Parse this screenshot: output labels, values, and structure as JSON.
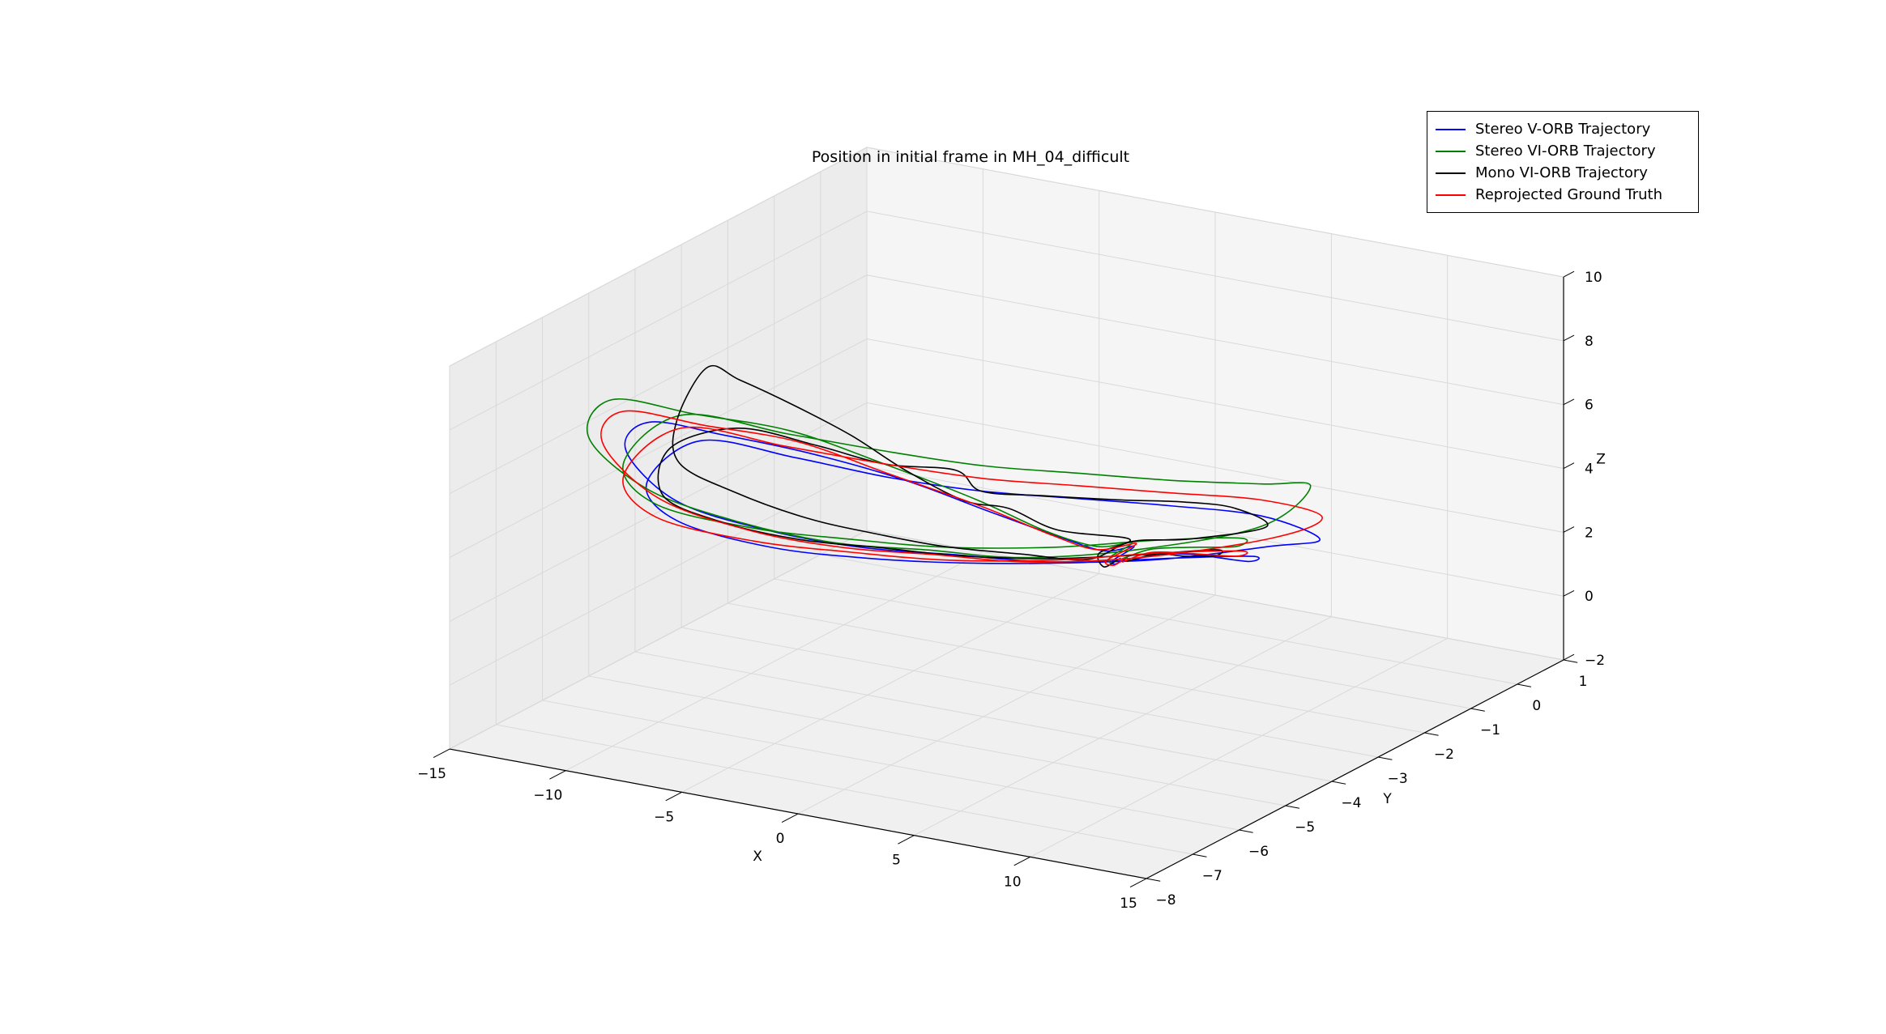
{
  "chart_data": {
    "type": "line",
    "plot_type": "3d-trajectory",
    "title": "Position in initial frame in MH_04_difficult",
    "xlabel": "X",
    "ylabel": "Y",
    "zlabel": "Z",
    "xlim": [
      -15,
      15
    ],
    "ylim": [
      -8,
      1
    ],
    "zlim": [
      -2,
      10
    ],
    "xticks": [
      -15,
      -10,
      -5,
      0,
      5,
      10,
      15
    ],
    "yticks": [
      1,
      0,
      -1,
      -2,
      -3,
      -4,
      -5,
      -6,
      -7,
      -8
    ],
    "zticks": [
      -2,
      0,
      2,
      4,
      6,
      8,
      10
    ],
    "view": {
      "elev": 30,
      "azim": -60
    },
    "grid": true,
    "legend_position": "upper right",
    "colors": {
      "pane_floor": "#f0f0f0",
      "pane_left": "#ececec",
      "pane_right": "#f5f5f5",
      "grid": "#d9d9d9",
      "pane_edge": "#cccccc",
      "spine": "#000000"
    },
    "series": [
      {
        "name": "Stereo V-ORB Trajectory",
        "color": "#0000ff",
        "points": [
          [
            -1,
            -0.4,
            0.1
          ],
          [
            -0.7,
            -0.8,
            0.25
          ],
          [
            -1.2,
            -0.6,
            0.15
          ],
          [
            -0.9,
            -0.3,
            0.4
          ],
          [
            -1,
            -0.9,
            0.7
          ],
          [
            -2.2,
            -1.3,
            1.3
          ],
          [
            -4.2,
            -1.8,
            2.2
          ],
          [
            -7,
            -2.2,
            3.1
          ],
          [
            -9.8,
            -2.8,
            4
          ],
          [
            -11.8,
            -3.7,
            5
          ],
          [
            -13,
            -4.7,
            6
          ],
          [
            -12.8,
            -5.3,
            5.6
          ],
          [
            -10.8,
            -5.2,
            4.2
          ],
          [
            -7.8,
            -4.7,
            3.3
          ],
          [
            -4.8,
            -4.2,
            2.8
          ],
          [
            -1.8,
            -3.7,
            2.6
          ],
          [
            1.2,
            -3.2,
            2.4
          ],
          [
            4.2,
            -2.3,
            2.2
          ],
          [
            6.3,
            -1,
            1.9
          ],
          [
            6.9,
            -0.2,
            1.6
          ],
          [
            5.2,
            -0.6,
            2.4
          ],
          [
            2.2,
            -1.1,
            2.7
          ],
          [
            -0.8,
            -1.6,
            2.9
          ],
          [
            -3.8,
            -2.1,
            3.1
          ],
          [
            -6.8,
            -2.6,
            3.5
          ],
          [
            -9.3,
            -3.4,
            4.4
          ],
          [
            -11.6,
            -4.3,
            5.3
          ],
          [
            -12.1,
            -5.2,
            4.6
          ],
          [
            -10.2,
            -5.5,
            3.9
          ],
          [
            -7.2,
            -5,
            3.1
          ],
          [
            -4.2,
            -4.4,
            2.7
          ],
          [
            -1.2,
            -3.8,
            2.5
          ],
          [
            1.8,
            -3,
            2.3
          ],
          [
            4.3,
            -2.1,
            2.1
          ],
          [
            5.8,
            -1.1,
            1.6
          ],
          [
            4.8,
            -0.7,
            1
          ],
          [
            2.2,
            -0.5,
            0.7
          ],
          [
            0.2,
            -0.3,
            0.3
          ],
          [
            -0.7,
            -0.5,
            0.12
          ]
        ]
      },
      {
        "name": "Stereo VI-ORB Trajectory",
        "color": "#008000",
        "points": [
          [
            -1.1,
            -0.5,
            0.15
          ],
          [
            -0.7,
            -0.9,
            0.35
          ],
          [
            -1.3,
            -0.6,
            0.25
          ],
          [
            -0.9,
            -0.35,
            0.55
          ],
          [
            -1.1,
            -1,
            0.9
          ],
          [
            -2.1,
            -1.6,
            1.7
          ],
          [
            -4.1,
            -2.1,
            2.8
          ],
          [
            -7.1,
            -2.6,
            3.9
          ],
          [
            -10.1,
            -3.1,
            4.9
          ],
          [
            -12.2,
            -4.1,
            5.9
          ],
          [
            -13.8,
            -5.1,
            6.9
          ],
          [
            -13.4,
            -5.8,
            6.3
          ],
          [
            -11.2,
            -5.6,
            4.8
          ],
          [
            -8.2,
            -5.1,
            3.8
          ],
          [
            -5.2,
            -4.6,
            3.2
          ],
          [
            -2.2,
            -4.1,
            3
          ],
          [
            0.9,
            -3.6,
            2.8
          ],
          [
            3.9,
            -2.6,
            2.7
          ],
          [
            6.2,
            -1.1,
            2.6
          ],
          [
            5.9,
            0.1,
            2.9
          ],
          [
            4.8,
            -0.4,
            3.2
          ],
          [
            1.9,
            -0.9,
            3.3
          ],
          [
            -1.1,
            -1.4,
            3.5
          ],
          [
            -4.1,
            -1.9,
            3.7
          ],
          [
            -7.1,
            -2.4,
            4.1
          ],
          [
            -9.6,
            -3.4,
            5.1
          ],
          [
            -12.2,
            -4.4,
            6.1
          ],
          [
            -12.7,
            -5.4,
            5.3
          ],
          [
            -10.7,
            -5.7,
            4.5
          ],
          [
            -7.7,
            -5.1,
            3.7
          ],
          [
            -4.7,
            -4.5,
            3.3
          ],
          [
            -1.7,
            -3.9,
            3
          ],
          [
            1.3,
            -3.1,
            2.8
          ],
          [
            3.8,
            -2.1,
            2.6
          ],
          [
            5.3,
            -1.1,
            2.1
          ],
          [
            4.3,
            -0.7,
            1.4
          ],
          [
            1.9,
            -0.5,
            0.9
          ],
          [
            -0.1,
            -0.35,
            0.45
          ],
          [
            -0.9,
            -0.55,
            0.2
          ]
        ]
      },
      {
        "name": "Mono VI-ORB Trajectory",
        "color": "#000000",
        "points": [
          [
            -1.2,
            -0.5,
            0.1
          ],
          [
            -0.8,
            -1,
            0.3
          ],
          [
            -1.4,
            -0.8,
            0.5
          ],
          [
            -0.9,
            -0.4,
            0.7
          ],
          [
            -2,
            -1.4,
            1.6
          ],
          [
            -3.5,
            -1.7,
            2.3
          ],
          [
            -4.2,
            -2.3,
            2.9
          ],
          [
            -6.5,
            -2.4,
            3.6
          ],
          [
            -8.5,
            -2.6,
            4.6
          ],
          [
            -10.5,
            -2.8,
            5.4
          ],
          [
            -12.5,
            -3,
            6.1
          ],
          [
            -13.5,
            -3.2,
            6.5
          ],
          [
            -12.8,
            -4.2,
            5.7
          ],
          [
            -11.5,
            -4.8,
            5
          ],
          [
            -9.5,
            -4.6,
            4.2
          ],
          [
            -7,
            -4.3,
            3.5
          ],
          [
            -4.5,
            -4,
            3.1
          ],
          [
            -2,
            -3.8,
            2.9
          ],
          [
            0.5,
            -3.4,
            2.7
          ],
          [
            2.5,
            -3,
            2.5
          ],
          [
            3.2,
            -2.4,
            2.7
          ],
          [
            4.5,
            -1.8,
            2.5
          ],
          [
            5.8,
            -0.8,
            2.3
          ],
          [
            4.6,
            -0.9,
            2.8
          ],
          [
            3,
            -1.2,
            3
          ],
          [
            1,
            -1.6,
            3.1
          ],
          [
            -1.5,
            -2,
            3.2
          ],
          [
            -3.5,
            -2.3,
            3.3
          ],
          [
            -5,
            -2.1,
            3.6
          ],
          [
            -6.8,
            -2.7,
            4
          ],
          [
            -8.8,
            -3.2,
            4.7
          ],
          [
            -10.8,
            -3.9,
            5.5
          ],
          [
            -12.3,
            -4.6,
            5.2
          ],
          [
            -11.2,
            -5.3,
            4.4
          ],
          [
            -9,
            -5.1,
            3.7
          ],
          [
            -6.5,
            -4.7,
            3.2
          ],
          [
            -4,
            -4.2,
            2.9
          ],
          [
            -1.5,
            -3.7,
            2.6
          ],
          [
            1,
            -3.1,
            2.4
          ],
          [
            3.2,
            -2.3,
            2.2
          ],
          [
            4.8,
            -1.4,
            1.9
          ],
          [
            4,
            -1,
            1.3
          ],
          [
            2.3,
            -0.8,
            0.9
          ],
          [
            0.5,
            -0.5,
            0.5
          ],
          [
            -0.6,
            -0.6,
            0.2
          ]
        ]
      },
      {
        "name": "Reprojected Ground Truth",
        "color": "#ff0000",
        "points": [
          [
            -1,
            -0.5,
            0.1
          ],
          [
            -0.6,
            -0.9,
            0.3
          ],
          [
            -1.3,
            -0.7,
            0.2
          ],
          [
            -0.8,
            -0.3,
            0.5
          ],
          [
            -1.1,
            -1,
            0.8
          ],
          [
            -2,
            -1.5,
            1.5
          ],
          [
            -4,
            -2,
            2.5
          ],
          [
            -7,
            -2.5,
            3.5
          ],
          [
            -10,
            -3,
            4.5
          ],
          [
            -12,
            -4,
            5.5
          ],
          [
            -13.5,
            -5,
            6.5
          ],
          [
            -13.2,
            -5.6,
            6
          ],
          [
            -11,
            -5.5,
            4.5
          ],
          [
            -8,
            -5,
            3.5
          ],
          [
            -5,
            -4.5,
            3
          ],
          [
            -2,
            -4,
            2.8
          ],
          [
            1,
            -3.5,
            2.6
          ],
          [
            4,
            -2.5,
            2.4
          ],
          [
            6.5,
            -1,
            2.2
          ],
          [
            6.6,
            0,
            2.1
          ],
          [
            5,
            -0.5,
            2.8
          ],
          [
            2,
            -1,
            3
          ],
          [
            -1,
            -1.5,
            3.2
          ],
          [
            -4,
            -2,
            3.4
          ],
          [
            -7,
            -2.5,
            3.8
          ],
          [
            -9.5,
            -3.5,
            4.8
          ],
          [
            -12,
            -4.5,
            5.8
          ],
          [
            -12.5,
            -5.5,
            5
          ],
          [
            -10.5,
            -5.8,
            4.2
          ],
          [
            -7.5,
            -5.2,
            3.4
          ],
          [
            -4.5,
            -4.6,
            3
          ],
          [
            -1.5,
            -4,
            2.7
          ],
          [
            1.5,
            -3.2,
            2.5
          ],
          [
            4,
            -2.2,
            2.3
          ],
          [
            5.5,
            -1.2,
            1.8
          ],
          [
            4.5,
            -0.8,
            1.2
          ],
          [
            2,
            -0.6,
            0.8
          ],
          [
            0,
            -0.4,
            0.4
          ],
          [
            -0.8,
            -0.6,
            0.15
          ]
        ]
      }
    ]
  }
}
